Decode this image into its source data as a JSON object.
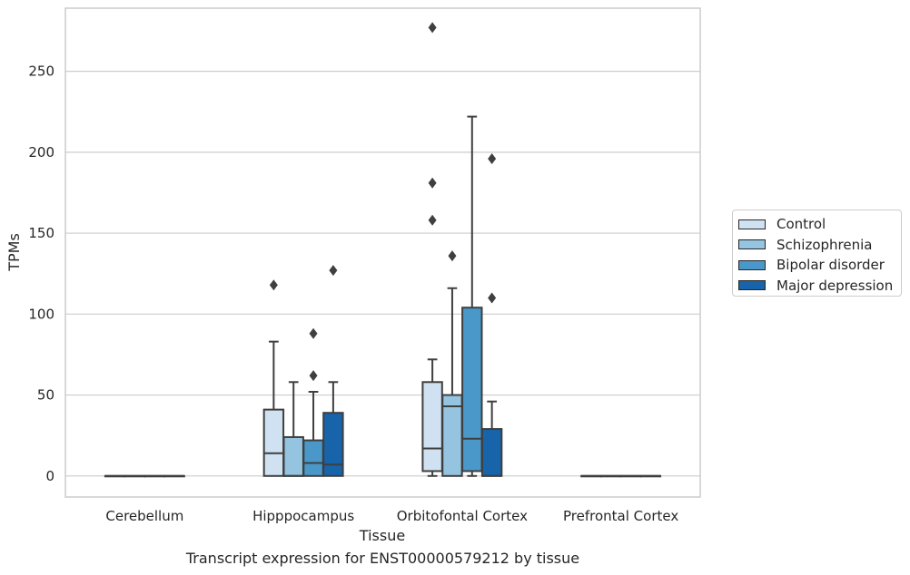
{
  "chart_data": {
    "type": "box",
    "title": "",
    "caption": "Transcript expression for ENST00000579212 by tissue",
    "xlabel": "Tissue",
    "ylabel": "TPMs",
    "ylim": [
      -13,
      289
    ],
    "yticks": [
      0,
      50,
      100,
      150,
      200,
      250
    ],
    "grid": "horizontal",
    "legend_position": "right",
    "categories": [
      "Cerebellum",
      "Hipppocampus",
      "Orbitofontal Cortex",
      "Prefrontal Cortex"
    ],
    "series": [
      {
        "name": "Control",
        "color": "#d0e1f2",
        "boxes": [
          {
            "min": 0,
            "q1": 0,
            "median": 0,
            "q3": 0,
            "max": 0,
            "outliers": []
          },
          {
            "min": 0,
            "q1": 0,
            "median": 14,
            "q3": 41,
            "max": 83,
            "outliers": [
              118
            ]
          },
          {
            "min": 0,
            "q1": 3,
            "median": 17,
            "q3": 58,
            "max": 72,
            "outliers": [
              158,
              181,
              277
            ]
          },
          {
            "min": 0,
            "q1": 0,
            "median": 0,
            "q3": 0,
            "max": 0,
            "outliers": []
          }
        ]
      },
      {
        "name": "Schizophrenia",
        "color": "#94c4df",
        "boxes": [
          {
            "min": 0,
            "q1": 0,
            "median": 0,
            "q3": 0,
            "max": 0,
            "outliers": []
          },
          {
            "min": 0,
            "q1": 0,
            "median": 0,
            "q3": 24,
            "max": 58,
            "outliers": []
          },
          {
            "min": 0,
            "q1": 0,
            "median": 43,
            "q3": 50,
            "max": 116,
            "outliers": [
              136
            ]
          },
          {
            "min": 0,
            "q1": 0,
            "median": 0,
            "q3": 0,
            "max": 0,
            "outliers": []
          }
        ]
      },
      {
        "name": "Bipolar disorder",
        "color": "#4a98c9",
        "boxes": [
          {
            "min": 0,
            "q1": 0,
            "median": 0,
            "q3": 0,
            "max": 0,
            "outliers": []
          },
          {
            "min": 0,
            "q1": 0,
            "median": 8,
            "q3": 22,
            "max": 52,
            "outliers": [
              62,
              88
            ]
          },
          {
            "min": 0,
            "q1": 3,
            "median": 23,
            "q3": 104,
            "max": 222,
            "outliers": []
          },
          {
            "min": 0,
            "q1": 0,
            "median": 0,
            "q3": 0,
            "max": 0,
            "outliers": []
          }
        ]
      },
      {
        "name": "Major depression",
        "color": "#1764ab",
        "boxes": [
          {
            "min": 0,
            "q1": 0,
            "median": 0,
            "q3": 0,
            "max": 0,
            "outliers": []
          },
          {
            "min": 0,
            "q1": 0,
            "median": 7,
            "q3": 39,
            "max": 58,
            "outliers": [
              127
            ]
          },
          {
            "min": 0,
            "q1": 0,
            "median": 0,
            "q3": 29,
            "max": 46,
            "outliers": [
              110,
              196
            ]
          },
          {
            "min": 0,
            "q1": 0,
            "median": 0,
            "q3": 0,
            "max": 0,
            "outliers": []
          }
        ]
      }
    ]
  }
}
